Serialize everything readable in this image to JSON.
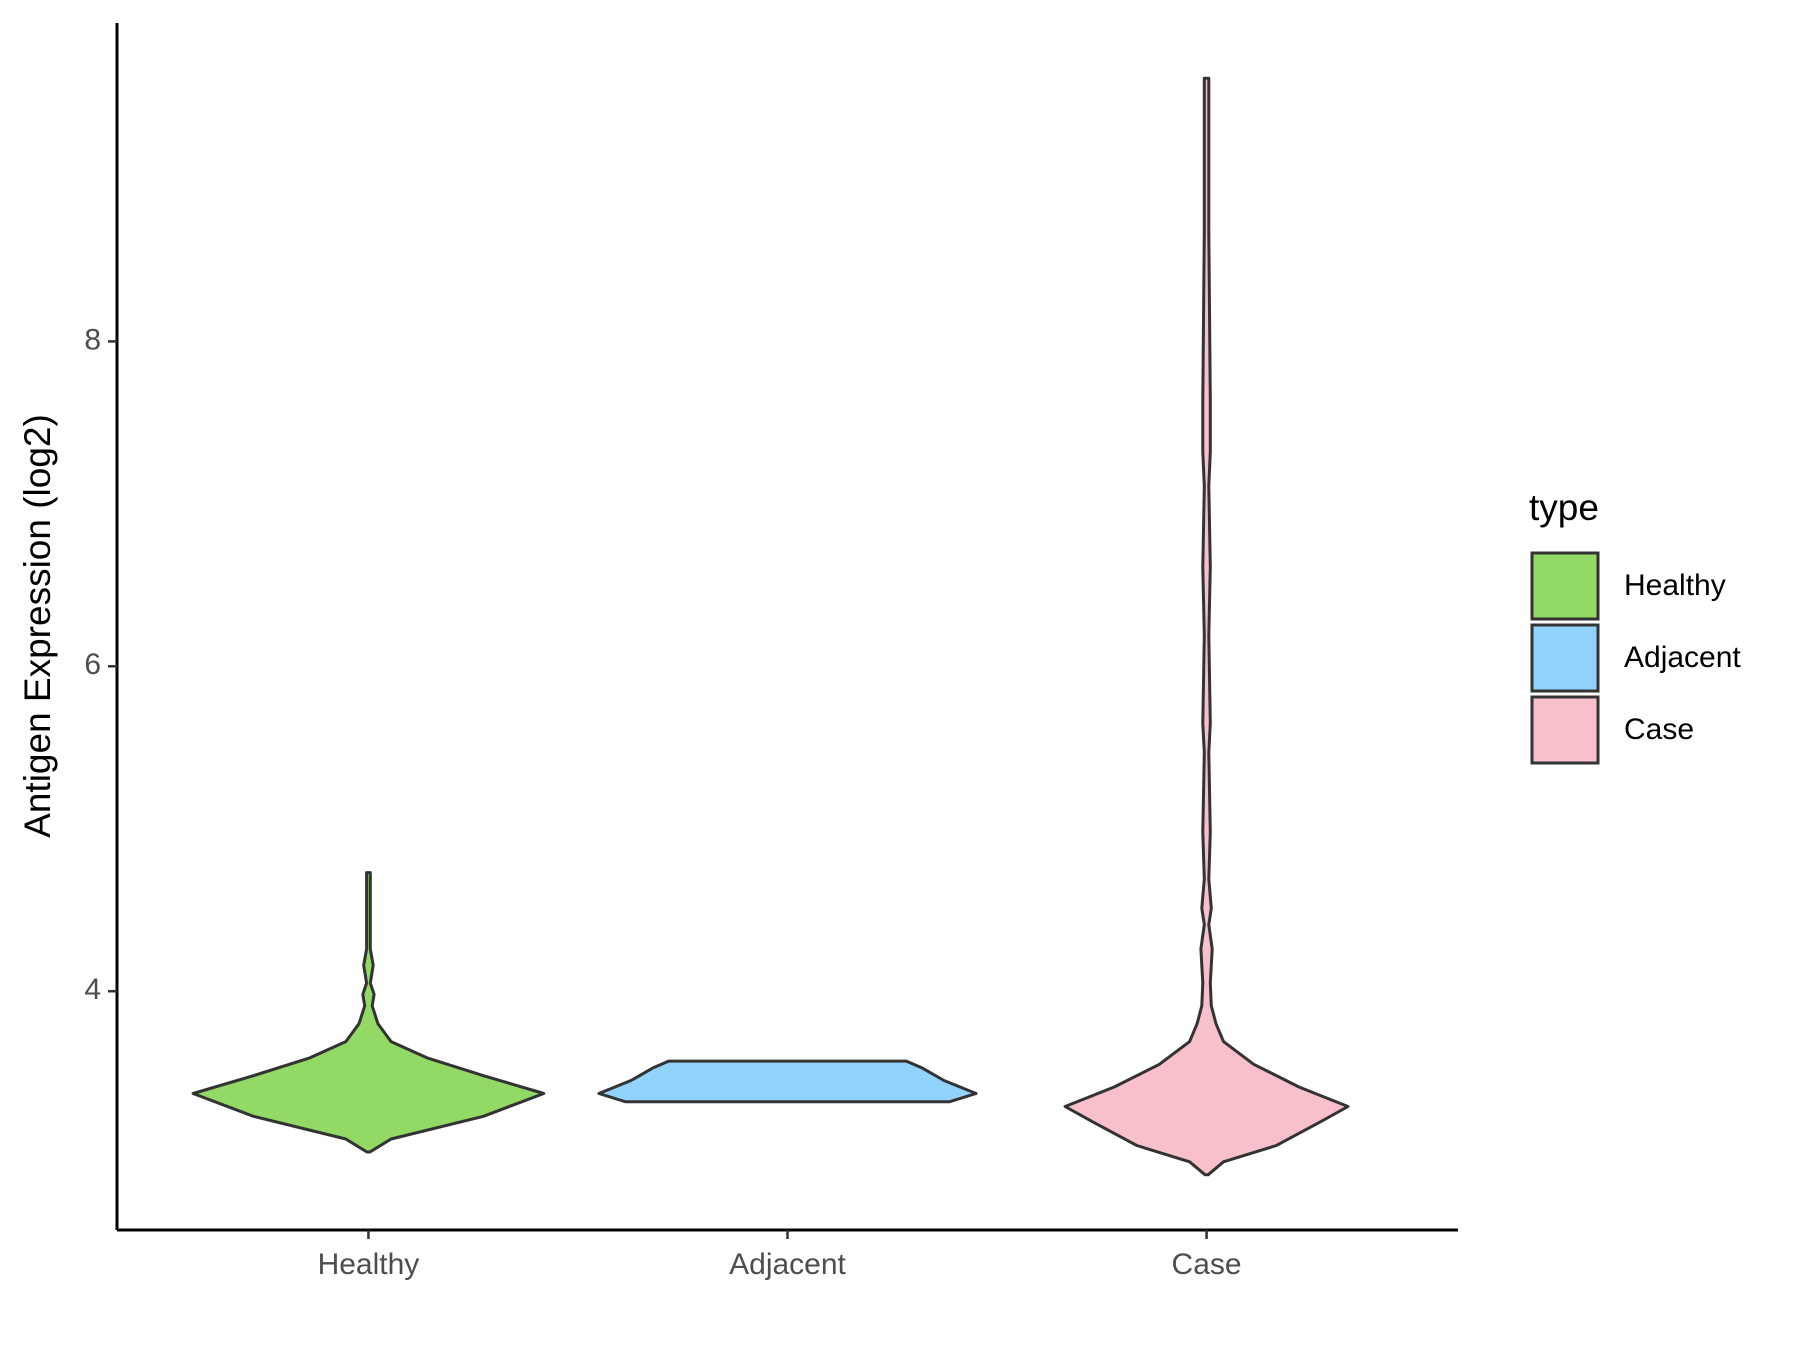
{
  "chart_data": {
    "type": "violin",
    "y_label": "Antigen Expression (log2)",
    "categories": [
      "Healthy",
      "Adjacent",
      "Case"
    ],
    "ylim": [
      2.53,
      9.96
    ],
    "yticks": [
      4,
      6,
      8
    ],
    "legend_title": "type",
    "series": [
      {
        "name": "Healthy",
        "color": "#92d966",
        "y": [
          3.01,
          3.09,
          3.23,
          3.37,
          3.48,
          3.59,
          3.69,
          3.8,
          3.91,
          3.98,
          4.05,
          4.16,
          4.26,
          4.41,
          4.73
        ],
        "width": [
          0,
          0.12,
          0.61,
          0.93,
          0.61,
          0.31,
          0.12,
          0.05,
          0.02,
          0.03,
          0.01,
          0.025,
          0.01,
          0.01,
          0.01
        ]
      },
      {
        "name": "Adjacent",
        "color": "#92d3fe",
        "y": [
          3.32,
          3.37,
          3.45,
          3.53,
          3.57
        ],
        "width": [
          0.86,
          1,
          0.83,
          0.71,
          0.63
        ]
      },
      {
        "name": "Case",
        "color": "#f8c0cb",
        "y": [
          2.87,
          2.95,
          3.05,
          3.2,
          3.29,
          3.41,
          3.55,
          3.69,
          3.8,
          3.91,
          4.05,
          4.26,
          4.41,
          4.51,
          4.69,
          4.98,
          5.47,
          5.65,
          6.19,
          6.61,
          7.11,
          7.32,
          7.64,
          8.68,
          9.62
        ],
        "width": [
          0,
          0.09,
          0.37,
          0.61,
          0.75,
          0.49,
          0.25,
          0.09,
          0.05,
          0.025,
          0.02,
          0.03,
          0.012,
          0.025,
          0.012,
          0.02,
          0.012,
          0.02,
          0.012,
          0.02,
          0.012,
          0.02,
          0.02,
          0.012,
          0.012
        ]
      }
    ]
  }
}
